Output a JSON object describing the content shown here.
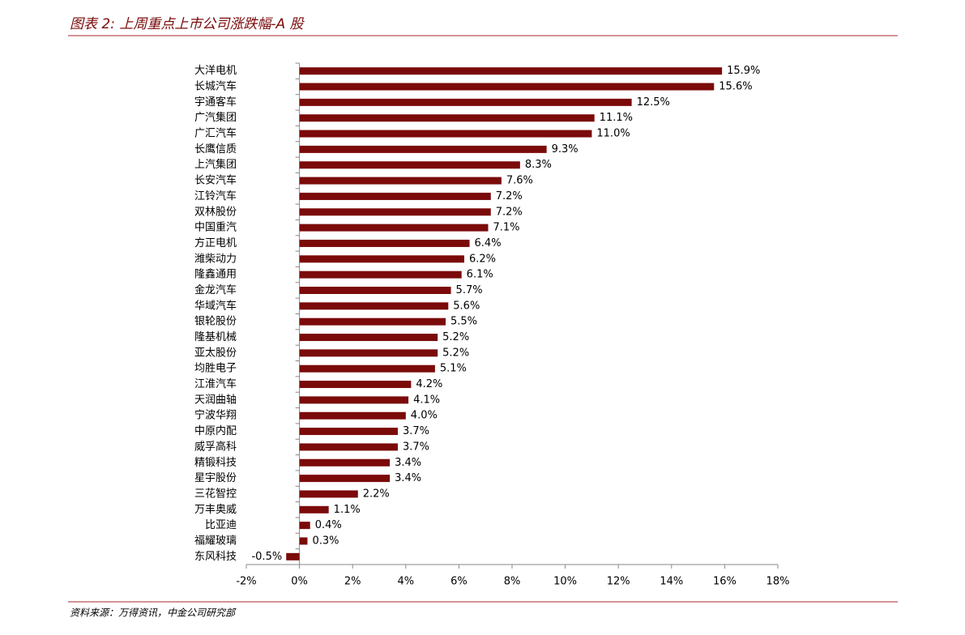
{
  "chart_data": {
    "type": "hbar",
    "title": "图表 2: 上周重点上市公司涨跌幅-A 股",
    "source": "资料来源：万得资讯，中金公司研究部",
    "categories": [
      "大洋电机",
      "长城汽车",
      "宇通客车",
      "广汽集团",
      "广汇汽车",
      "长鹰信质",
      "上汽集团",
      "长安汽车",
      "江铃汽车",
      "双林股份",
      "中国重汽",
      "方正电机",
      "潍柴动力",
      "隆鑫通用",
      "金龙汽车",
      "华域汽车",
      "银轮股份",
      "隆基机械",
      "亚太股份",
      "均胜电子",
      "江淮汽车",
      "天润曲轴",
      "宁波华翔",
      "中原内配",
      "威孚高科",
      "精锻科技",
      "星宇股份",
      "三花智控",
      "万丰奥威",
      "比亚迪",
      "福耀玻璃",
      "东风科技"
    ],
    "values": [
      15.9,
      15.6,
      12.5,
      11.1,
      11.0,
      9.3,
      8.3,
      7.6,
      7.2,
      7.2,
      7.1,
      6.4,
      6.2,
      6.1,
      5.7,
      5.6,
      5.5,
      5.2,
      5.2,
      5.1,
      4.2,
      4.1,
      4.0,
      3.7,
      3.7,
      3.4,
      3.4,
      2.2,
      1.1,
      0.4,
      0.3,
      -0.5
    ],
    "value_labels": [
      "15.9%",
      "15.6%",
      "12.5%",
      "11.1%",
      "11.0%",
      "9.3%",
      "8.3%",
      "7.6%",
      "7.2%",
      "7.2%",
      "7.1%",
      "6.4%",
      "6.2%",
      "6.1%",
      "5.7%",
      "5.6%",
      "5.5%",
      "5.2%",
      "5.2%",
      "5.1%",
      "4.2%",
      "4.1%",
      "4.0%",
      "3.7%",
      "3.7%",
      "3.4%",
      "3.4%",
      "2.2%",
      "1.1%",
      "0.4%",
      "0.3%",
      "-0.5%"
    ],
    "color": "#7b0a0a",
    "xlim": [
      -2,
      18
    ],
    "xticks": [
      {
        "value": -2,
        "label": "-2%"
      },
      {
        "value": 0,
        "label": "0%"
      },
      {
        "value": 2,
        "label": "2%"
      },
      {
        "value": 4,
        "label": "4%"
      },
      {
        "value": 6,
        "label": "6%"
      },
      {
        "value": 8,
        "label": "8%"
      },
      {
        "value": 10,
        "label": "10%"
      },
      {
        "value": 12,
        "label": "12%"
      },
      {
        "value": 14,
        "label": "14%"
      },
      {
        "value": 16,
        "label": "16%"
      },
      {
        "value": 18,
        "label": "18%"
      }
    ]
  }
}
